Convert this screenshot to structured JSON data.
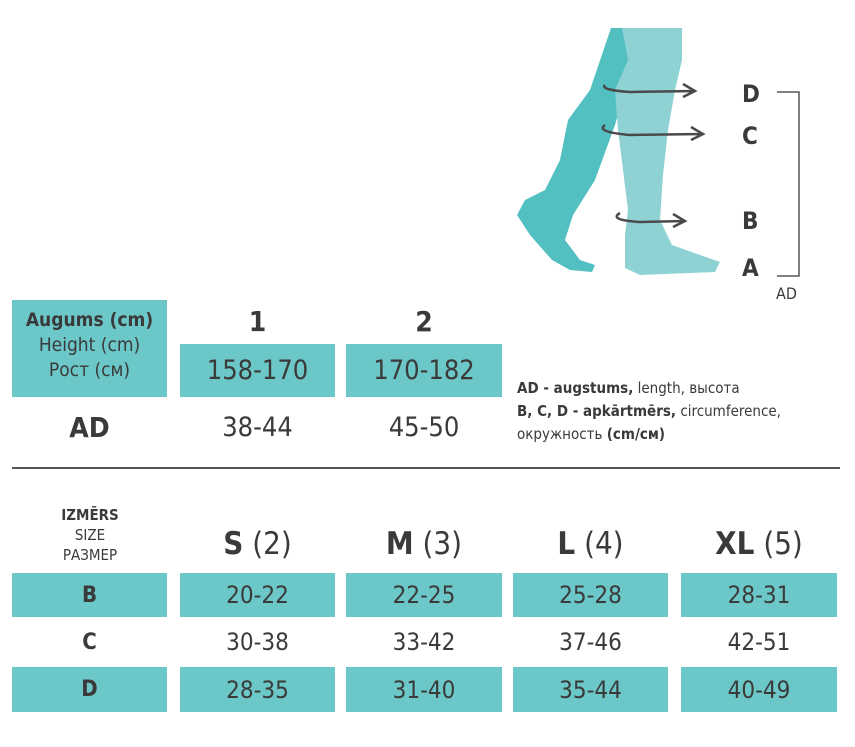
{
  "diagram": {
    "labels": [
      "D",
      "C",
      "B",
      "A"
    ],
    "bracket_label": "AD",
    "colors": {
      "back_leg": "#52bfc1",
      "front_leg": "#8fd2d4",
      "arrow": "#4a4a4a"
    }
  },
  "height_table": {
    "header": {
      "line1": "Augums (cm)",
      "line2": "Height (cm)",
      "line3": "Рост (см)"
    },
    "columns": [
      {
        "label": "1",
        "height": "158-170",
        "ad": "38-44"
      },
      {
        "label": "2",
        "height": "170-182",
        "ad": "45-50"
      }
    ],
    "row_label": "AD"
  },
  "legend": {
    "line1_bold": "AD - augstums,",
    "line1_rest": " length, высота",
    "line2_bold": "B, C, D - apkārtmērs,",
    "line2_rest": " circumference,",
    "line3_rest": "окружность ",
    "line3_bold": "(cm/см)"
  },
  "size_table": {
    "header": {
      "line1": "IZMĒRS",
      "line2": "SIZE",
      "line3": "РАЗМЕР"
    },
    "sizes": [
      {
        "letter": "S",
        "num": "(2)"
      },
      {
        "letter": "M",
        "num": "(3)"
      },
      {
        "letter": "L",
        "num": "(4)"
      },
      {
        "letter": "XL",
        "num": "(5)"
      }
    ],
    "rows": [
      {
        "label": "B",
        "values": [
          "20-22",
          "22-25",
          "25-28",
          "28-31"
        ]
      },
      {
        "label": "C",
        "values": [
          "30-38",
          "33-42",
          "37-46",
          "42-51"
        ]
      },
      {
        "label": "D",
        "values": [
          "28-35",
          "31-40",
          "35-44",
          "40-49"
        ]
      }
    ]
  },
  "accent_color": "#6cc7c8"
}
